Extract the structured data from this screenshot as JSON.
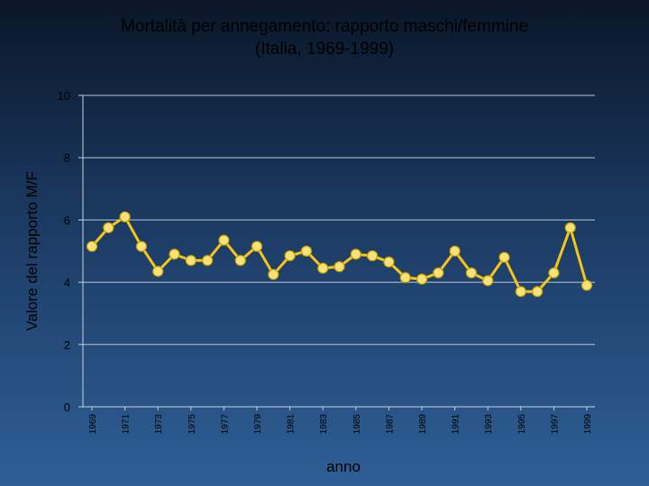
{
  "chart_data": {
    "type": "line",
    "title": "Mortalità per annegamento: rapporto maschi/femmine",
    "subtitle": "(Italia, 1969-1999)",
    "xlabel": "anno",
    "ylabel": "Valore del rapporto M/F",
    "ylim": [
      0,
      10
    ],
    "yticks": [
      "0",
      "2",
      "4",
      "6",
      "8",
      "10"
    ],
    "xlim": [
      1969,
      1999
    ],
    "xticks": [
      "1969",
      "1971",
      "1973",
      "1975",
      "1977",
      "1979",
      "1981",
      "1983",
      "1985",
      "1987",
      "1989",
      "1991",
      "1993",
      "1995",
      "1997",
      "1999"
    ],
    "grid": true,
    "legend": "none",
    "line_color": "#f5c518",
    "marker_color": "#f7e27a",
    "series": [
      {
        "x": [
          1969,
          1970,
          1971,
          1972,
          1973,
          1974,
          1975,
          1976,
          1977,
          1978,
          1979,
          1980,
          1981,
          1982,
          1983,
          1984,
          1985,
          1986,
          1987,
          1988,
          1989,
          1990,
          1991,
          1992,
          1993,
          1994,
          1995,
          1996,
          1997,
          1998,
          1999
        ],
        "values": [
          5.15,
          5.75,
          6.1,
          5.15,
          4.35,
          4.9,
          4.7,
          4.7,
          5.35,
          4.7,
          5.15,
          4.25,
          4.85,
          5.0,
          4.45,
          4.5,
          4.9,
          4.85,
          4.65,
          4.15,
          4.1,
          4.3,
          5.0,
          4.3,
          4.05,
          4.8,
          3.7,
          3.7,
          4.3,
          5.75,
          3.9
        ]
      }
    ]
  }
}
